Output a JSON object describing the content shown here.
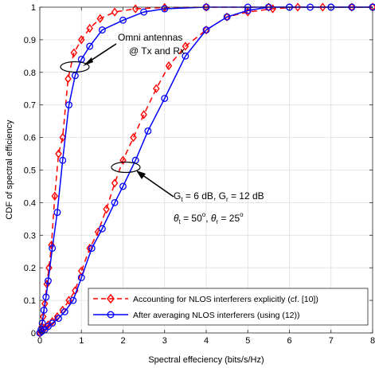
{
  "chart_data": {
    "type": "line",
    "xlabel": "Spectral effeciency (bits/s/Hz)",
    "ylabel": "CDF of spectral efficiency",
    "xlim": [
      0,
      8
    ],
    "ylim": [
      0,
      1
    ],
    "xticks": [
      "0",
      "1",
      "2",
      "3",
      "4",
      "5",
      "6",
      "7",
      "8"
    ],
    "yticks": [
      "0",
      "0.1",
      "0.2",
      "0.3",
      "0.4",
      "0.5",
      "0.6",
      "0.7",
      "0.8",
      "0.9",
      "1"
    ],
    "grid": true,
    "legend_position": "bottom-right",
    "series": [
      {
        "name": "Accounting for NLOS interferers explicitly (cf. [10])",
        "color": "#ff0000",
        "line_style": "dashed",
        "marker": "diamond",
        "x": [
          0,
          0.02,
          0.05,
          0.08,
          0.12,
          0.17,
          0.22,
          0.28,
          0.36,
          0.45,
          0.55,
          0.68,
          0.82,
          1.0,
          1.2,
          1.45,
          1.8,
          2.3,
          3.0,
          4.0,
          5.5
        ],
        "y": [
          0.0,
          0.005,
          0.02,
          0.05,
          0.09,
          0.15,
          0.2,
          0.27,
          0.42,
          0.55,
          0.6,
          0.78,
          0.86,
          0.9,
          0.935,
          0.965,
          0.985,
          0.995,
          0.999,
          1.0,
          1.0
        ]
      },
      {
        "name": "After averaging NLOS interferers (using (12))",
        "color": "#0000ff",
        "line_style": "solid",
        "marker": "circle",
        "x": [
          0,
          0.03,
          0.06,
          0.1,
          0.15,
          0.2,
          0.3,
          0.42,
          0.55,
          0.7,
          0.85,
          1.0,
          1.2,
          1.5,
          2.0,
          2.5,
          3.0,
          4.0,
          5.0,
          6.0,
          7.0,
          8.0
        ],
        "y": [
          0.0,
          0.01,
          0.03,
          0.07,
          0.11,
          0.16,
          0.26,
          0.37,
          0.53,
          0.7,
          0.79,
          0.84,
          0.88,
          0.93,
          0.96,
          0.985,
          0.995,
          1.0,
          1.0,
          1.0,
          1.0,
          1.0
        ]
      },
      {
        "name": "",
        "color": "#ff0000",
        "line_style": "dashed",
        "marker": "diamond",
        "x": [
          0,
          0.05,
          0.12,
          0.2,
          0.3,
          0.42,
          0.55,
          0.7,
          0.85,
          1.0,
          1.2,
          1.4,
          1.6,
          1.8,
          2.0,
          2.25,
          2.5,
          2.8,
          3.1,
          3.5,
          4.0,
          4.5,
          5.0,
          5.6,
          6.2,
          6.8,
          7.5,
          8.0
        ],
        "y": [
          0.0,
          0.005,
          0.015,
          0.025,
          0.035,
          0.05,
          0.07,
          0.1,
          0.13,
          0.19,
          0.26,
          0.31,
          0.38,
          0.46,
          0.53,
          0.6,
          0.67,
          0.75,
          0.82,
          0.88,
          0.93,
          0.97,
          0.985,
          0.995,
          1.0,
          1.0,
          1.0,
          1.0
        ]
      },
      {
        "name": "",
        "color": "#0000ff",
        "line_style": "solid",
        "marker": "circle",
        "x": [
          0,
          0.05,
          0.12,
          0.2,
          0.3,
          0.45,
          0.6,
          0.8,
          1.0,
          1.25,
          1.5,
          1.8,
          2.0,
          2.3,
          2.6,
          3.0,
          3.5,
          4.0,
          4.5,
          5.0,
          5.5,
          6.0,
          6.5,
          7.0,
          7.5,
          8.0
        ],
        "y": [
          0.0,
          0.005,
          0.01,
          0.02,
          0.03,
          0.045,
          0.065,
          0.1,
          0.17,
          0.26,
          0.32,
          0.4,
          0.45,
          0.53,
          0.62,
          0.72,
          0.85,
          0.93,
          0.97,
          0.99,
          1.0,
          1.0,
          1.0,
          1.0,
          1.0,
          1.0
        ]
      }
    ],
    "annotations": [
      {
        "lines": [
          "Omni antennas",
          "@ Tx and Rx"
        ]
      },
      {
        "lines": [
          "Gt = 6 dB, Gr = 12 dB",
          "θt = 50°, θr = 25°"
        ]
      }
    ]
  },
  "legend": {
    "entries": [
      "Accounting for NLOS interferers explicitly (cf. [10])",
      "After averaging NLOS interferers (using (12))"
    ]
  },
  "annotation_omni": {
    "line1": "Omni antennas",
    "line2": "@ Tx and Rx"
  },
  "annotation_directional": {
    "gt_symbol": "G",
    "gt_sub": "t",
    "gt_value": " = 6 dB, ",
    "gr_symbol": "G",
    "gr_sub": "r",
    "gr_value": " = 12 dB",
    "theta_t_symbol": "θ",
    "theta_t_sub": "t",
    "theta_t_value": " = 50",
    "theta_t_deg": "o",
    "comma": ", ",
    "theta_r_symbol": "θ",
    "theta_r_sub": "r",
    "theta_r_value": " = 25",
    "theta_r_deg": "o"
  }
}
